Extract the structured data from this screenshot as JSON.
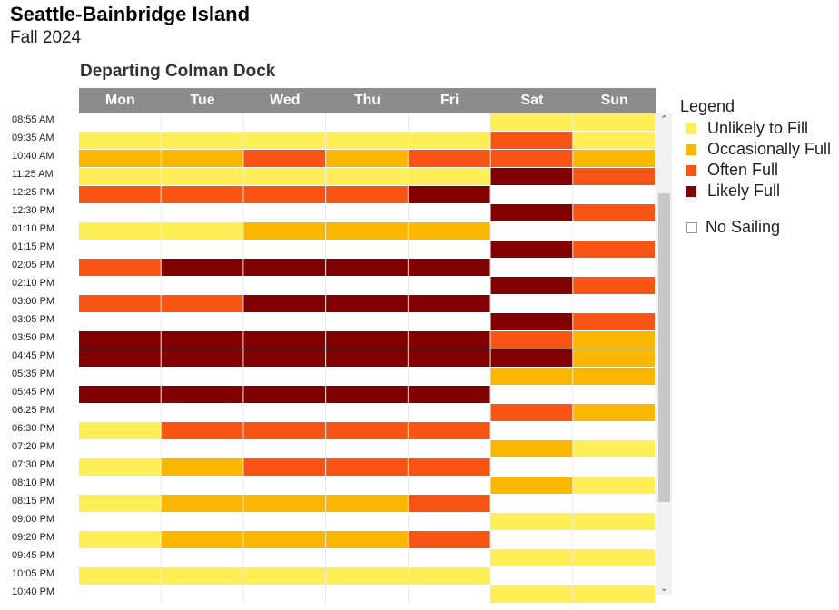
{
  "header": {
    "title": "Seattle-Bainbridge Island",
    "subtitle": "Fall 2024"
  },
  "colors": {
    "Unlikely to Fill": "#ffee55",
    "Occasionally Full": "#fbb600",
    "Often Full": "#f85413",
    "Likely Full": "#820000",
    "No Sailing": "#ffffff"
  },
  "legend": {
    "title": "Legend",
    "items": [
      "Unlikely to Fill",
      "Occasionally Full",
      "Often Full",
      "Likely Full"
    ],
    "empty_label": "No Sailing"
  },
  "chart_data": {
    "type": "heatmap",
    "title": "Departing Colman Dock",
    "x": [
      "Mon",
      "Tue",
      "Wed",
      "Thu",
      "Fri",
      "Sat",
      "Sun"
    ],
    "y": [
      "08:55 AM",
      "09:35 AM",
      "10:40 AM",
      "11:25 AM",
      "12:25 PM",
      "12:30 PM",
      "01:10 PM",
      "01:15 PM",
      "02:05 PM",
      "02:10 PM",
      "03:00 PM",
      "03:05 PM",
      "03:50 PM",
      "04:45 PM",
      "05:35 PM",
      "05:45 PM",
      "06:25 PM",
      "06:30 PM",
      "07:20 PM",
      "07:30 PM",
      "08:10 PM",
      "08:15 PM",
      "09:00 PM",
      "09:20 PM",
      "09:45 PM",
      "10:05 PM",
      "10:40 PM"
    ],
    "levels": [
      "No Sailing",
      "Unlikely to Fill",
      "Occasionally Full",
      "Often Full",
      "Likely Full"
    ],
    "values": [
      [
        0,
        0,
        0,
        0,
        0,
        1,
        1
      ],
      [
        1,
        1,
        1,
        1,
        1,
        3,
        1
      ],
      [
        2,
        2,
        3,
        2,
        3,
        3,
        2
      ],
      [
        1,
        1,
        1,
        1,
        1,
        4,
        3
      ],
      [
        3,
        3,
        3,
        3,
        4,
        0,
        0
      ],
      [
        0,
        0,
        0,
        0,
        0,
        4,
        3
      ],
      [
        1,
        1,
        2,
        2,
        2,
        0,
        0
      ],
      [
        0,
        0,
        0,
        0,
        0,
        4,
        3
      ],
      [
        3,
        4,
        4,
        4,
        4,
        0,
        0
      ],
      [
        0,
        0,
        0,
        0,
        0,
        4,
        3
      ],
      [
        3,
        3,
        4,
        4,
        4,
        0,
        0
      ],
      [
        0,
        0,
        0,
        0,
        0,
        4,
        3
      ],
      [
        4,
        4,
        4,
        4,
        4,
        3,
        2
      ],
      [
        4,
        4,
        4,
        4,
        4,
        4,
        2
      ],
      [
        0,
        0,
        0,
        0,
        0,
        2,
        2
      ],
      [
        4,
        4,
        4,
        4,
        4,
        0,
        0
      ],
      [
        0,
        0,
        0,
        0,
        0,
        3,
        2
      ],
      [
        1,
        3,
        3,
        3,
        3,
        0,
        0
      ],
      [
        0,
        0,
        0,
        0,
        0,
        2,
        1
      ],
      [
        1,
        2,
        3,
        3,
        3,
        0,
        0
      ],
      [
        0,
        0,
        0,
        0,
        0,
        2,
        1
      ],
      [
        1,
        2,
        2,
        2,
        3,
        0,
        0
      ],
      [
        0,
        0,
        0,
        0,
        0,
        1,
        1
      ],
      [
        1,
        2,
        2,
        2,
        3,
        0,
        0
      ],
      [
        0,
        0,
        0,
        0,
        0,
        1,
        1
      ],
      [
        1,
        1,
        1,
        1,
        1,
        0,
        0
      ],
      [
        0,
        0,
        0,
        0,
        0,
        1,
        1
      ]
    ]
  }
}
